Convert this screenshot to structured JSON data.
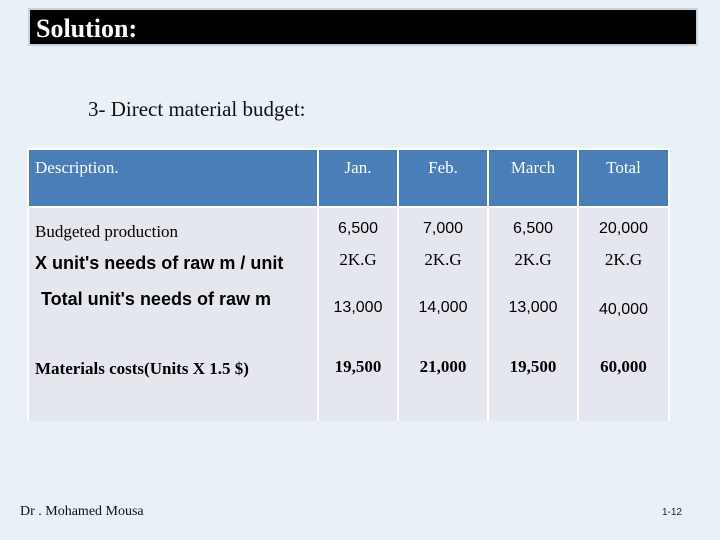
{
  "title": "Solution:",
  "subtitle": "3- Direct material budget:",
  "table": {
    "headers": [
      "Description.",
      "Jan.",
      "Feb.",
      "March",
      "Total"
    ],
    "rows": [
      {
        "label": "Budgeted production",
        "values": [
          "6,500",
          "7,000",
          "6,500",
          "20,000"
        ]
      },
      {
        "label": "X unit's needs of raw m / unit",
        "values": [
          "2K.G",
          "2K.G",
          "2K.G",
          "2K.G"
        ]
      },
      {
        "label": "Total unit's needs of raw m",
        "values": [
          "13,000",
          "14,000",
          "13,000",
          "40,000"
        ]
      },
      {
        "label": "Materials costs(Units X  1.5 $)",
        "values": [
          "19,500",
          "21,000",
          "19,500",
          "60,000"
        ]
      }
    ]
  },
  "footer": {
    "author": "Dr . Mohamed Mousa",
    "page": "1-12"
  }
}
